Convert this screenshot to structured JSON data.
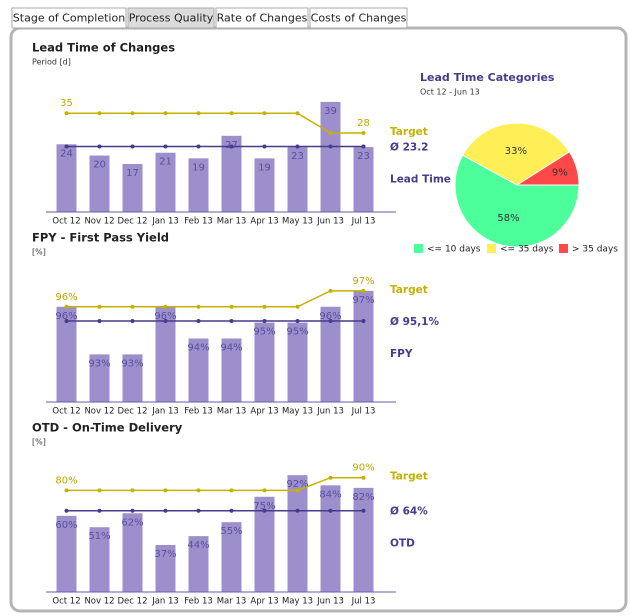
{
  "tabs": [
    "Stage of Completion",
    "Process Quality",
    "Rate of Changes",
    "Costs of Changes"
  ],
  "active_tab": 1,
  "chart_data": [
    {
      "type": "bar",
      "title": "Lead Time of Changes",
      "subtitle": "Period [d]",
      "categories": [
        "Oct 12",
        "Nov 12",
        "Dec 12",
        "Jan 13",
        "Feb 13",
        "Mar 13",
        "Apr 13",
        "May 13",
        "Jun 13",
        "Jul 13"
      ],
      "ylim": [
        0,
        45
      ],
      "series": [
        {
          "name": "Lead Time",
          "type": "bar",
          "color": "#9c8fcb",
          "values": [
            24,
            20,
            17,
            21,
            19,
            27,
            19,
            23,
            39,
            23
          ]
        },
        {
          "name": "Target",
          "type": "line",
          "color": "#c6b000",
          "values": [
            35,
            35,
            35,
            35,
            35,
            35,
            35,
            35,
            28,
            28
          ],
          "value_labels": [
            "35",
            null,
            null,
            null,
            null,
            null,
            null,
            null,
            null,
            "28"
          ]
        },
        {
          "name": "Ø 23.2",
          "type": "line",
          "color": "#463c8c",
          "values": [
            23.2,
            23.2,
            23.2,
            23.2,
            23.2,
            23.2,
            23.2,
            23.2,
            23.2,
            23.2
          ]
        }
      ]
    },
    {
      "type": "bar",
      "title": "FPY - First Pass Yield",
      "subtitle": "[%]",
      "categories": [
        "Oct 12",
        "Nov 12",
        "Dec 12",
        "Jan 13",
        "Feb 13",
        "Mar 13",
        "Apr 13",
        "May 13",
        "Jun 13",
        "Jul 13"
      ],
      "ylim": [
        90,
        98
      ],
      "series": [
        {
          "name": "FPY",
          "type": "bar",
          "color": "#9c8fcb",
          "values": [
            96,
            93,
            93,
            96,
            94,
            94,
            95,
            95,
            96,
            97
          ],
          "value_labels": [
            "96%",
            "93%",
            "93%",
            "96%",
            "94%",
            "94%",
            "95%",
            "95%",
            "96%",
            "97%"
          ]
        },
        {
          "name": "Target",
          "type": "line",
          "color": "#c6b000",
          "values": [
            96,
            96,
            96,
            96,
            96,
            96,
            96,
            96,
            97,
            97
          ],
          "value_labels": [
            "96%",
            null,
            null,
            null,
            null,
            null,
            null,
            null,
            null,
            "97%"
          ]
        },
        {
          "name": "Ø 95,1%",
          "type": "line",
          "color": "#463c8c",
          "values": [
            95.1,
            95.1,
            95.1,
            95.1,
            95.1,
            95.1,
            95.1,
            95.1,
            95.1,
            95.1
          ]
        }
      ]
    },
    {
      "type": "bar",
      "title": "OTD - On-Time Delivery",
      "subtitle": "[%]",
      "categories": [
        "Oct 12",
        "Nov 12",
        "Dec 12",
        "Jan 13",
        "Feb 13",
        "Mar 13",
        "Apr 13",
        "May 13",
        "Jun 13",
        "Jul 13"
      ],
      "ylim": [
        0,
        100
      ],
      "series": [
        {
          "name": "OTD",
          "type": "bar",
          "color": "#9c8fcb",
          "values": [
            60,
            51,
            62,
            37,
            44,
            55,
            75,
            92,
            84,
            82
          ],
          "value_labels": [
            "60%",
            "51%",
            "62%",
            "37%",
            "44%",
            "55%",
            "75%",
            "92%",
            "84%",
            "82%"
          ]
        },
        {
          "name": "Target",
          "type": "line",
          "color": "#c6b000",
          "values": [
            80,
            80,
            80,
            80,
            80,
            80,
            80,
            80,
            90,
            90
          ],
          "value_labels": [
            "80%",
            null,
            null,
            null,
            null,
            null,
            null,
            null,
            null,
            "90%"
          ]
        },
        {
          "name": "Ø 64%",
          "type": "line",
          "color": "#463c8c",
          "values": [
            64,
            64,
            64,
            64,
            64,
            64,
            64,
            64,
            64,
            64
          ]
        }
      ]
    },
    {
      "type": "pie",
      "title": "Lead Time Categories",
      "subtitle": "Oct 12 - Jun 13",
      "categories": [
        "<= 10 days",
        "<= 35 days",
        "> 35 days"
      ],
      "values": [
        58,
        33,
        9
      ],
      "value_labels": [
        "58%",
        "33%",
        "9%"
      ],
      "colors": [
        "#4cff9a",
        "#ffee55",
        "#ff4848"
      ]
    }
  ]
}
